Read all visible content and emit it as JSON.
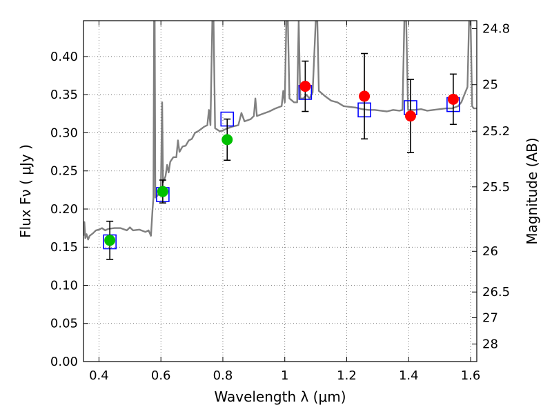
{
  "chart_data": {
    "type": "scatter",
    "xlabel": "Wavelength  λ (μm)",
    "ylabel": "Flux  Fν  ( μJy )",
    "y2label": "Magnitude (AB)",
    "xlim": [
      0.35,
      1.62
    ],
    "ylim": [
      0.0,
      0.447
    ],
    "grid": true,
    "x_ticks": [
      "0.4",
      "0.6",
      "0.8",
      "1",
      "1.2",
      "1.4",
      "1.6"
    ],
    "x_tick_values": [
      0.4,
      0.6,
      0.8,
      1.0,
      1.2,
      1.4,
      1.6
    ],
    "y_ticks": [
      "0.00",
      "0.05",
      "0.10",
      "0.15",
      "0.20",
      "0.25",
      "0.30",
      "0.35",
      "0.40"
    ],
    "y_tick_values": [
      0.0,
      0.05,
      0.1,
      0.15,
      0.2,
      0.25,
      0.3,
      0.35,
      0.4
    ],
    "y2_ticks": [
      "24.8",
      "25",
      "25.2",
      "25.5",
      "26",
      "26.5",
      "27",
      "28"
    ],
    "y2_tick_values": [
      24.8,
      25.0,
      25.2,
      25.5,
      26.0,
      26.5,
      27.0,
      28.0
    ],
    "colors": {
      "spectrum": "#808080",
      "green": "#00c000",
      "red": "#ff0000",
      "model": "#0000ff",
      "errorbar": "#000000",
      "grid": "#555555"
    },
    "model_points": [
      {
        "x": 0.435,
        "y": 0.157
      },
      {
        "x": 0.606,
        "y": 0.219
      },
      {
        "x": 0.814,
        "y": 0.318
      },
      {
        "x": 1.066,
        "y": 0.353
      },
      {
        "x": 1.257,
        "y": 0.33
      },
      {
        "x": 1.406,
        "y": 0.333
      },
      {
        "x": 1.544,
        "y": 0.337
      }
    ],
    "observed_green": [
      {
        "x": 0.435,
        "y": 0.159,
        "yerr": 0.025
      },
      {
        "x": 0.606,
        "y": 0.223,
        "yerr": 0.015
      },
      {
        "x": 0.814,
        "y": 0.291,
        "yerr": 0.027
      }
    ],
    "observed_red": [
      {
        "x": 1.066,
        "y": 0.361,
        "yerr": 0.033
      },
      {
        "x": 1.257,
        "y": 0.348,
        "yerr": 0.056
      },
      {
        "x": 1.406,
        "y": 0.322,
        "yerr": 0.048
      },
      {
        "x": 1.544,
        "y": 0.344,
        "yerr": 0.033
      }
    ],
    "spectrum": [
      [
        0.35,
        0.165
      ],
      [
        0.353,
        0.183
      ],
      [
        0.356,
        0.162
      ],
      [
        0.36,
        0.167
      ],
      [
        0.365,
        0.16
      ],
      [
        0.37,
        0.165
      ],
      [
        0.38,
        0.168
      ],
      [
        0.39,
        0.172
      ],
      [
        0.4,
        0.173
      ],
      [
        0.41,
        0.175
      ],
      [
        0.42,
        0.172
      ],
      [
        0.43,
        0.174
      ],
      [
        0.45,
        0.175
      ],
      [
        0.47,
        0.175
      ],
      [
        0.49,
        0.172
      ],
      [
        0.5,
        0.176
      ],
      [
        0.51,
        0.172
      ],
      [
        0.53,
        0.173
      ],
      [
        0.55,
        0.17
      ],
      [
        0.56,
        0.172
      ],
      [
        0.568,
        0.165
      ],
      [
        0.573,
        0.2
      ],
      [
        0.576,
        0.215
      ],
      [
        0.578,
        0.447
      ],
      [
        0.58,
        0.447
      ],
      [
        0.582,
        0.215
      ],
      [
        0.59,
        0.218
      ],
      [
        0.6,
        0.23
      ],
      [
        0.604,
        0.34
      ],
      [
        0.607,
        0.235
      ],
      [
        0.615,
        0.243
      ],
      [
        0.62,
        0.258
      ],
      [
        0.625,
        0.248
      ],
      [
        0.63,
        0.262
      ],
      [
        0.64,
        0.268
      ],
      [
        0.65,
        0.268
      ],
      [
        0.655,
        0.29
      ],
      [
        0.66,
        0.275
      ],
      [
        0.67,
        0.282
      ],
      [
        0.68,
        0.283
      ],
      [
        0.69,
        0.29
      ],
      [
        0.7,
        0.292
      ],
      [
        0.71,
        0.3
      ],
      [
        0.72,
        0.302
      ],
      [
        0.73,
        0.305
      ],
      [
        0.74,
        0.308
      ],
      [
        0.75,
        0.31
      ],
      [
        0.755,
        0.33
      ],
      [
        0.76,
        0.31
      ],
      [
        0.766,
        0.447
      ],
      [
        0.77,
        0.447
      ],
      [
        0.775,
        0.306
      ],
      [
        0.79,
        0.302
      ],
      [
        0.8,
        0.303
      ],
      [
        0.81,
        0.305
      ],
      [
        0.83,
        0.308
      ],
      [
        0.85,
        0.31
      ],
      [
        0.86,
        0.326
      ],
      [
        0.87,
        0.315
      ],
      [
        0.89,
        0.318
      ],
      [
        0.9,
        0.322
      ],
      [
        0.905,
        0.345
      ],
      [
        0.91,
        0.322
      ],
      [
        0.93,
        0.325
      ],
      [
        0.95,
        0.328
      ],
      [
        0.97,
        0.332
      ],
      [
        0.99,
        0.335
      ],
      [
        0.995,
        0.355
      ],
      [
        1.0,
        0.34
      ],
      [
        1.005,
        0.447
      ],
      [
        1.01,
        0.447
      ],
      [
        1.015,
        0.345
      ],
      [
        1.03,
        0.34
      ],
      [
        1.04,
        0.34
      ],
      [
        1.045,
        0.447
      ],
      [
        1.05,
        0.345
      ],
      [
        1.06,
        0.345
      ],
      [
        1.07,
        0.35
      ],
      [
        1.08,
        0.345
      ],
      [
        1.09,
        0.353
      ],
      [
        1.1,
        0.447
      ],
      [
        1.105,
        0.447
      ],
      [
        1.11,
        0.355
      ],
      [
        1.13,
        0.348
      ],
      [
        1.15,
        0.342
      ],
      [
        1.17,
        0.34
      ],
      [
        1.19,
        0.335
      ],
      [
        1.21,
        0.334
      ],
      [
        1.23,
        0.333
      ],
      [
        1.25,
        0.331
      ],
      [
        1.27,
        0.33
      ],
      [
        1.29,
        0.33
      ],
      [
        1.31,
        0.329
      ],
      [
        1.33,
        0.328
      ],
      [
        1.35,
        0.33
      ],
      [
        1.37,
        0.329
      ],
      [
        1.38,
        0.33
      ],
      [
        1.386,
        0.447
      ],
      [
        1.392,
        0.447
      ],
      [
        1.398,
        0.33
      ],
      [
        1.42,
        0.33
      ],
      [
        1.44,
        0.331
      ],
      [
        1.46,
        0.329
      ],
      [
        1.48,
        0.33
      ],
      [
        1.5,
        0.331
      ],
      [
        1.52,
        0.332
      ],
      [
        1.54,
        0.332
      ],
      [
        1.56,
        0.335
      ],
      [
        1.57,
        0.34
      ],
      [
        1.58,
        0.35
      ],
      [
        1.59,
        0.36
      ],
      [
        1.595,
        0.447
      ],
      [
        1.6,
        0.447
      ],
      [
        1.605,
        0.335
      ],
      [
        1.61,
        0.332
      ],
      [
        1.62,
        0.332
      ]
    ]
  }
}
